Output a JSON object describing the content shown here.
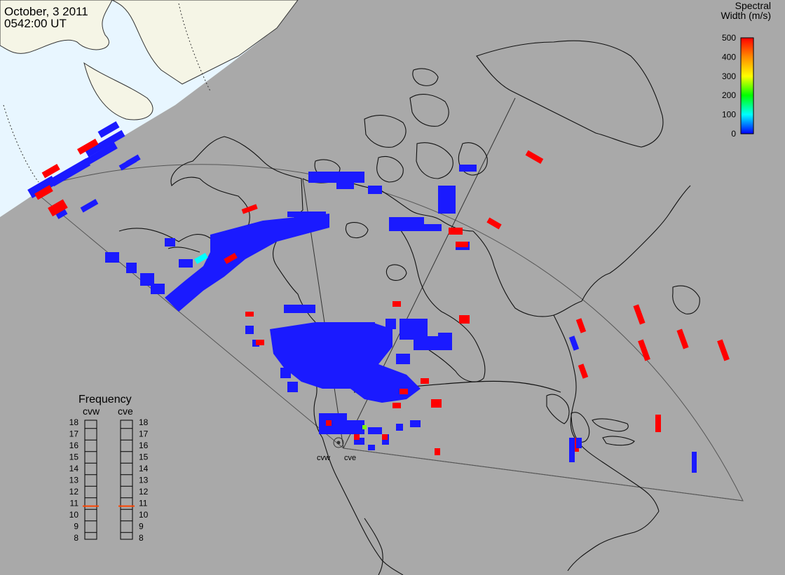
{
  "header": {
    "date": "October, 3 2011",
    "time": "0542:00 UT"
  },
  "colorbar": {
    "title_line1": "Spectral",
    "title_line2": "Width (m/s)",
    "ticks": [
      "500",
      "400",
      "300",
      "200",
      "100",
      "0"
    ],
    "stops": [
      "#ff0000",
      "#ff8c00",
      "#ffff00",
      "#00ff00",
      "#00ffff",
      "#0000ff"
    ]
  },
  "frequency": {
    "title": "Frequency",
    "left_label": "cvw",
    "right_label": "cve",
    "ticks": [
      "18",
      "17",
      "16",
      "15",
      "14",
      "13",
      "12",
      "11",
      "10",
      "9",
      "8"
    ],
    "cvw_value": 10.75,
    "cve_value": 10.75,
    "range": [
      8,
      18
    ],
    "marker_color": "#ff4400"
  },
  "radars": {
    "west_label": "cvw",
    "east_label": "cve"
  },
  "colors": {
    "map_background": "#a9a9a9",
    "daylight": "#e8f6ff",
    "land_daylight": "#f5f5e6",
    "scatter_low": "#1a1aff",
    "scatter_high": "#ff0000"
  }
}
